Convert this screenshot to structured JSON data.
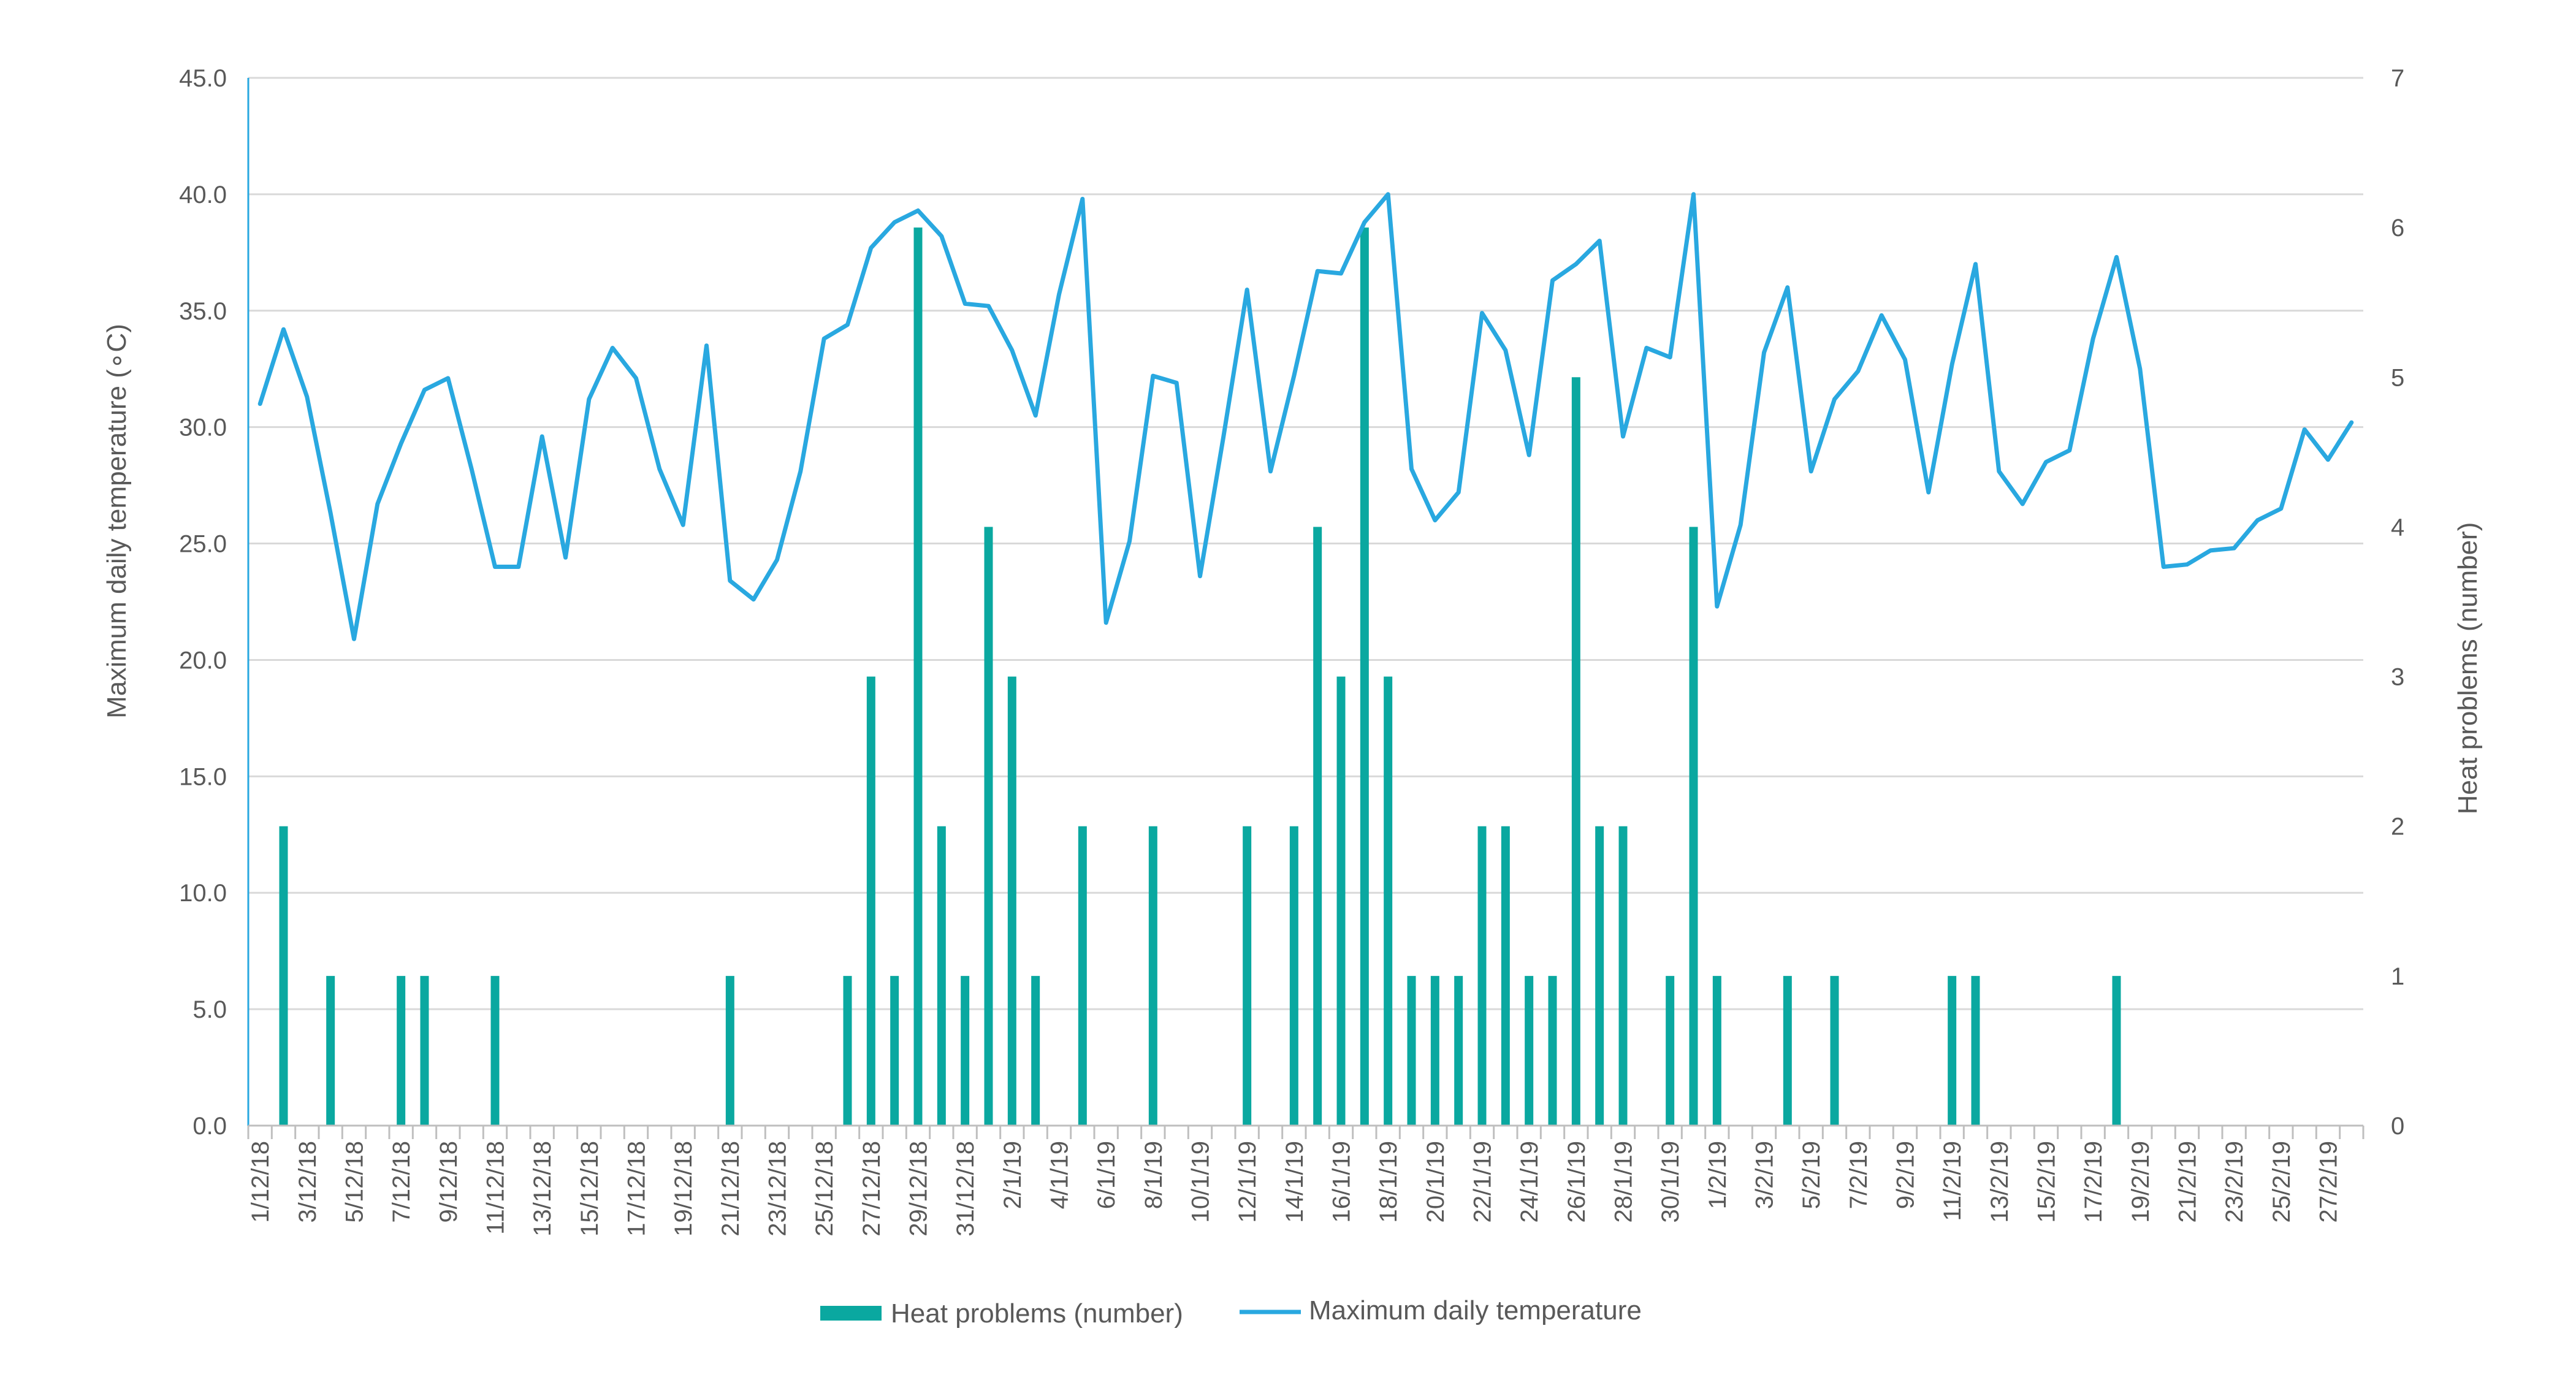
{
  "chart_data": {
    "type": "bar",
    "x": [
      "1/12/18",
      "2/12/18",
      "3/12/18",
      "4/12/18",
      "5/12/18",
      "6/12/18",
      "7/12/18",
      "8/12/18",
      "9/12/18",
      "10/12/18",
      "11/12/18",
      "12/12/18",
      "13/12/18",
      "14/12/18",
      "15/12/18",
      "16/12/18",
      "17/12/18",
      "18/12/18",
      "19/12/18",
      "20/12/18",
      "21/12/18",
      "22/12/18",
      "23/12/18",
      "24/12/18",
      "25/12/18",
      "26/12/18",
      "27/12/18",
      "28/12/18",
      "29/12/18",
      "30/12/18",
      "31/12/18",
      "1/1/19",
      "2/1/19",
      "3/1/19",
      "4/1/19",
      "5/1/19",
      "6/1/19",
      "7/1/19",
      "8/1/19",
      "9/1/19",
      "10/1/19",
      "11/1/19",
      "12/1/19",
      "13/1/19",
      "14/1/19",
      "15/1/19",
      "16/1/19",
      "17/1/19",
      "18/1/19",
      "19/1/19",
      "20/1/19",
      "21/1/19",
      "22/1/19",
      "23/1/19",
      "24/1/19",
      "25/1/19",
      "26/1/19",
      "27/1/19",
      "28/1/19",
      "29/1/19",
      "30/1/19",
      "31/1/19",
      "1/2/19",
      "2/2/19",
      "3/2/19",
      "4/2/19",
      "5/2/19",
      "6/2/19",
      "7/2/19",
      "8/2/19",
      "9/2/19",
      "10/2/19",
      "11/2/19",
      "12/2/19",
      "13/2/19",
      "14/2/19",
      "15/2/19",
      "16/2/19",
      "17/2/19",
      "18/2/19",
      "19/2/19",
      "20/2/19",
      "21/2/19",
      "22/2/19",
      "23/2/19",
      "24/2/19",
      "25/2/19",
      "26/2/19",
      "27/2/19",
      "28/2/19"
    ],
    "x_tick_labels": [
      "1/12/18",
      "3/12/18",
      "5/12/18",
      "7/12/18",
      "9/12/18",
      "11/12/18",
      "13/12/18",
      "15/12/18",
      "17/12/18",
      "19/12/18",
      "21/12/18",
      "23/12/18",
      "25/12/18",
      "27/12/18",
      "29/12/18",
      "31/12/18",
      "2/1/19",
      "4/1/19",
      "6/1/19",
      "8/1/19",
      "10/1/19",
      "12/1/19",
      "14/1/19",
      "16/1/19",
      "18/1/19",
      "20/1/19",
      "22/1/19",
      "24/1/19",
      "26/1/19",
      "28/1/19",
      "30/1/19",
      "1/2/19",
      "3/2/19",
      "5/2/19",
      "7/2/19",
      "9/2/19",
      "11/2/19",
      "13/2/19",
      "15/2/19",
      "17/2/19",
      "19/2/19",
      "21/2/19",
      "23/2/19",
      "25/2/19",
      "27/2/19"
    ],
    "series": [
      {
        "name": "Heat problems (number)",
        "kind": "bar",
        "axis": "right",
        "color": "#0aa8a0",
        "values": [
          0,
          2,
          0,
          1,
          0,
          0,
          1,
          1,
          0,
          0,
          1,
          0,
          0,
          0,
          0,
          0,
          0,
          0,
          0,
          0,
          1,
          0,
          0,
          0,
          0,
          1,
          3,
          1,
          6,
          2,
          1,
          4,
          3,
          1,
          0,
          2,
          0,
          0,
          2,
          0,
          0,
          0,
          2,
          0,
          2,
          4,
          3,
          6,
          3,
          1,
          1,
          1,
          2,
          2,
          1,
          1,
          5,
          2,
          2,
          0,
          1,
          4,
          1,
          0,
          0,
          1,
          0,
          1,
          0,
          0,
          0,
          0,
          1,
          1,
          0,
          0,
          0,
          0,
          0,
          1,
          0,
          0,
          0,
          0,
          0,
          0,
          0,
          0,
          0,
          0
        ]
      },
      {
        "name": "Maximum daily temperature",
        "kind": "line",
        "axis": "left",
        "color": "#29a8e0",
        "values": [
          31.0,
          34.2,
          31.3,
          26.3,
          20.9,
          26.7,
          29.3,
          31.6,
          32.1,
          28.2,
          24.0,
          24.0,
          29.6,
          24.4,
          31.2,
          33.4,
          32.1,
          28.2,
          25.8,
          33.5,
          23.4,
          22.6,
          24.3,
          28.1,
          33.8,
          34.4,
          37.7,
          38.8,
          39.3,
          38.2,
          35.3,
          35.2,
          33.3,
          30.5,
          35.7,
          39.8,
          21.6,
          25.1,
          32.2,
          31.9,
          23.6,
          29.6,
          35.9,
          28.1,
          32.2,
          36.7,
          36.6,
          38.8,
          40.0,
          28.2,
          26.0,
          27.2,
          34.9,
          33.3,
          28.8,
          36.3,
          37.0,
          38.0,
          29.6,
          33.4,
          33.0,
          40.0,
          22.3,
          25.8,
          33.2,
          36.0,
          28.1,
          31.2,
          32.4,
          34.8,
          32.9,
          27.2,
          32.7,
          37.0,
          28.1,
          26.7,
          28.5,
          29.0,
          33.8,
          37.3,
          32.5,
          24.0,
          24.1,
          24.7,
          24.8,
          26.0,
          26.5,
          29.9,
          28.6,
          30.2
        ]
      }
    ],
    "y_left": {
      "label": "Maximum daily temperature (∘C)",
      "lim": [
        0,
        45
      ],
      "ticks": [
        "0.0",
        "5.0",
        "10.0",
        "15.0",
        "20.0",
        "25.0",
        "30.0",
        "35.0",
        "40.0",
        "45.0"
      ]
    },
    "y_right": {
      "label": "Heat problems (number)",
      "lim": [
        0,
        7
      ],
      "ticks": [
        "0",
        "1",
        "2",
        "3",
        "4",
        "5",
        "6",
        "7"
      ]
    },
    "grid": true,
    "legend": "bottom",
    "title": "",
    "xlabel": ""
  }
}
